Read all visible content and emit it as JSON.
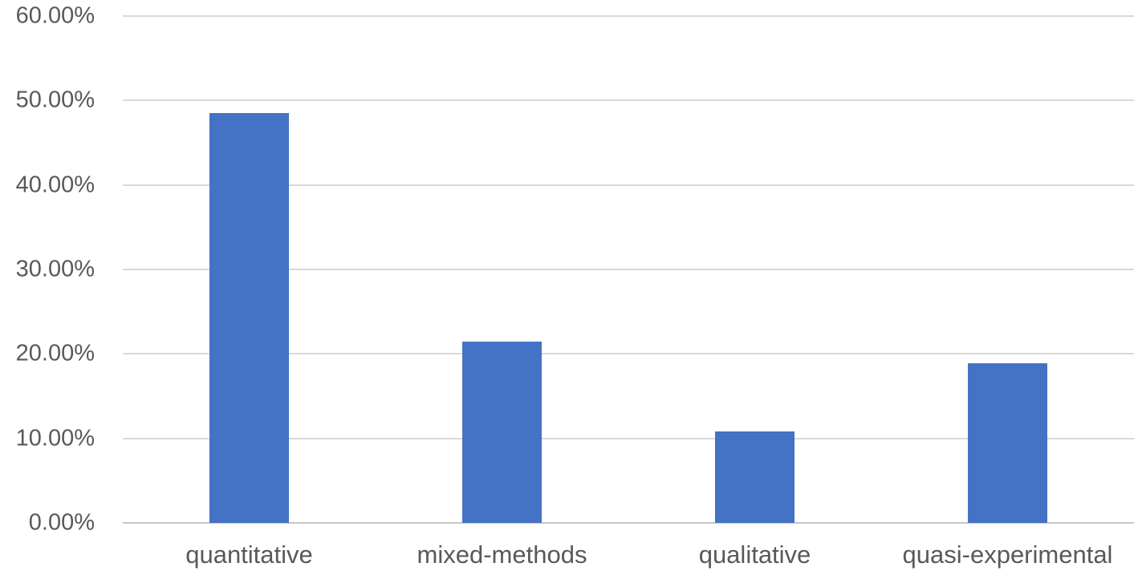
{
  "chart_data": {
    "type": "bar",
    "title": "",
    "xlabel": "",
    "ylabel": "",
    "categories": [
      "quantitative",
      "mixed-methods",
      "qualitative",
      "quasi-experimental"
    ],
    "values": [
      48.5,
      21.5,
      10.8,
      18.9
    ],
    "value_unit": "%",
    "ylim": [
      0,
      60
    ],
    "ytick_step": 10,
    "ytick_labels": [
      "60.00%",
      "50.00%",
      "40.00%",
      "30.00%",
      "20.00%",
      "10.00%",
      "0.00%"
    ],
    "grid": true,
    "legend": false,
    "colors": {
      "bar_fill": "#4472c4",
      "gridline": "#d9d9d9",
      "axis_line": "#c6c6c6",
      "tick_label_text": "#595959",
      "background": "#ffffff"
    }
  }
}
